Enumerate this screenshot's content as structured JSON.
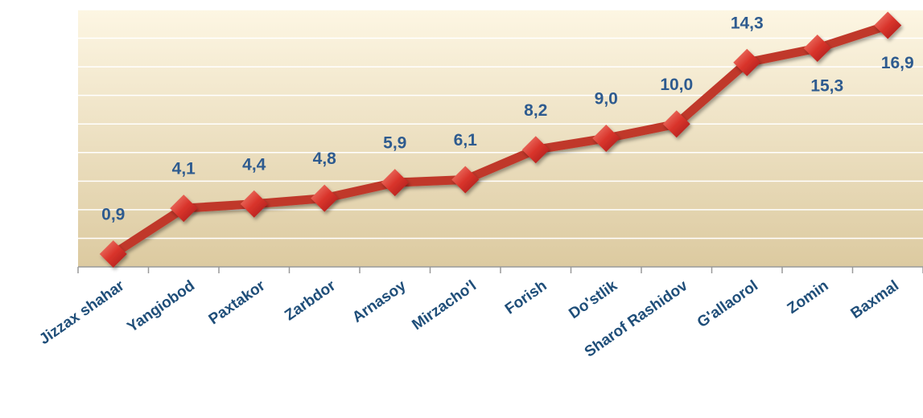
{
  "chart_data": {
    "type": "line",
    "categories": [
      "Jizzax shahar",
      "Yangiobod",
      "Paxtakor",
      "Zarbdor",
      "Arnasoy",
      "Mirzacho'l",
      "Forish",
      "Do'stlik",
      "Sharof Rashidov",
      "G'allaorol",
      "Zomin",
      "Baxmal"
    ],
    "series": [
      {
        "color": "#c0392b",
        "values": [
          0.9,
          4.1,
          4.4,
          4.8,
          5.9,
          6.1,
          8.2,
          9.0,
          10.0,
          14.3,
          15.3,
          16.9
        ],
        "value_labels": [
          "0,9",
          "4,1",
          "4,4",
          "4,8",
          "5,9",
          "6,1",
          "8,2",
          "9,0",
          "10,0",
          "14,3",
          "15,3",
          "16,9"
        ]
      }
    ],
    "ylim": [
      0,
      18
    ],
    "yticks": [
      0,
      2,
      4,
      6,
      8,
      10,
      12,
      14,
      16,
      18
    ],
    "grid": true
  }
}
